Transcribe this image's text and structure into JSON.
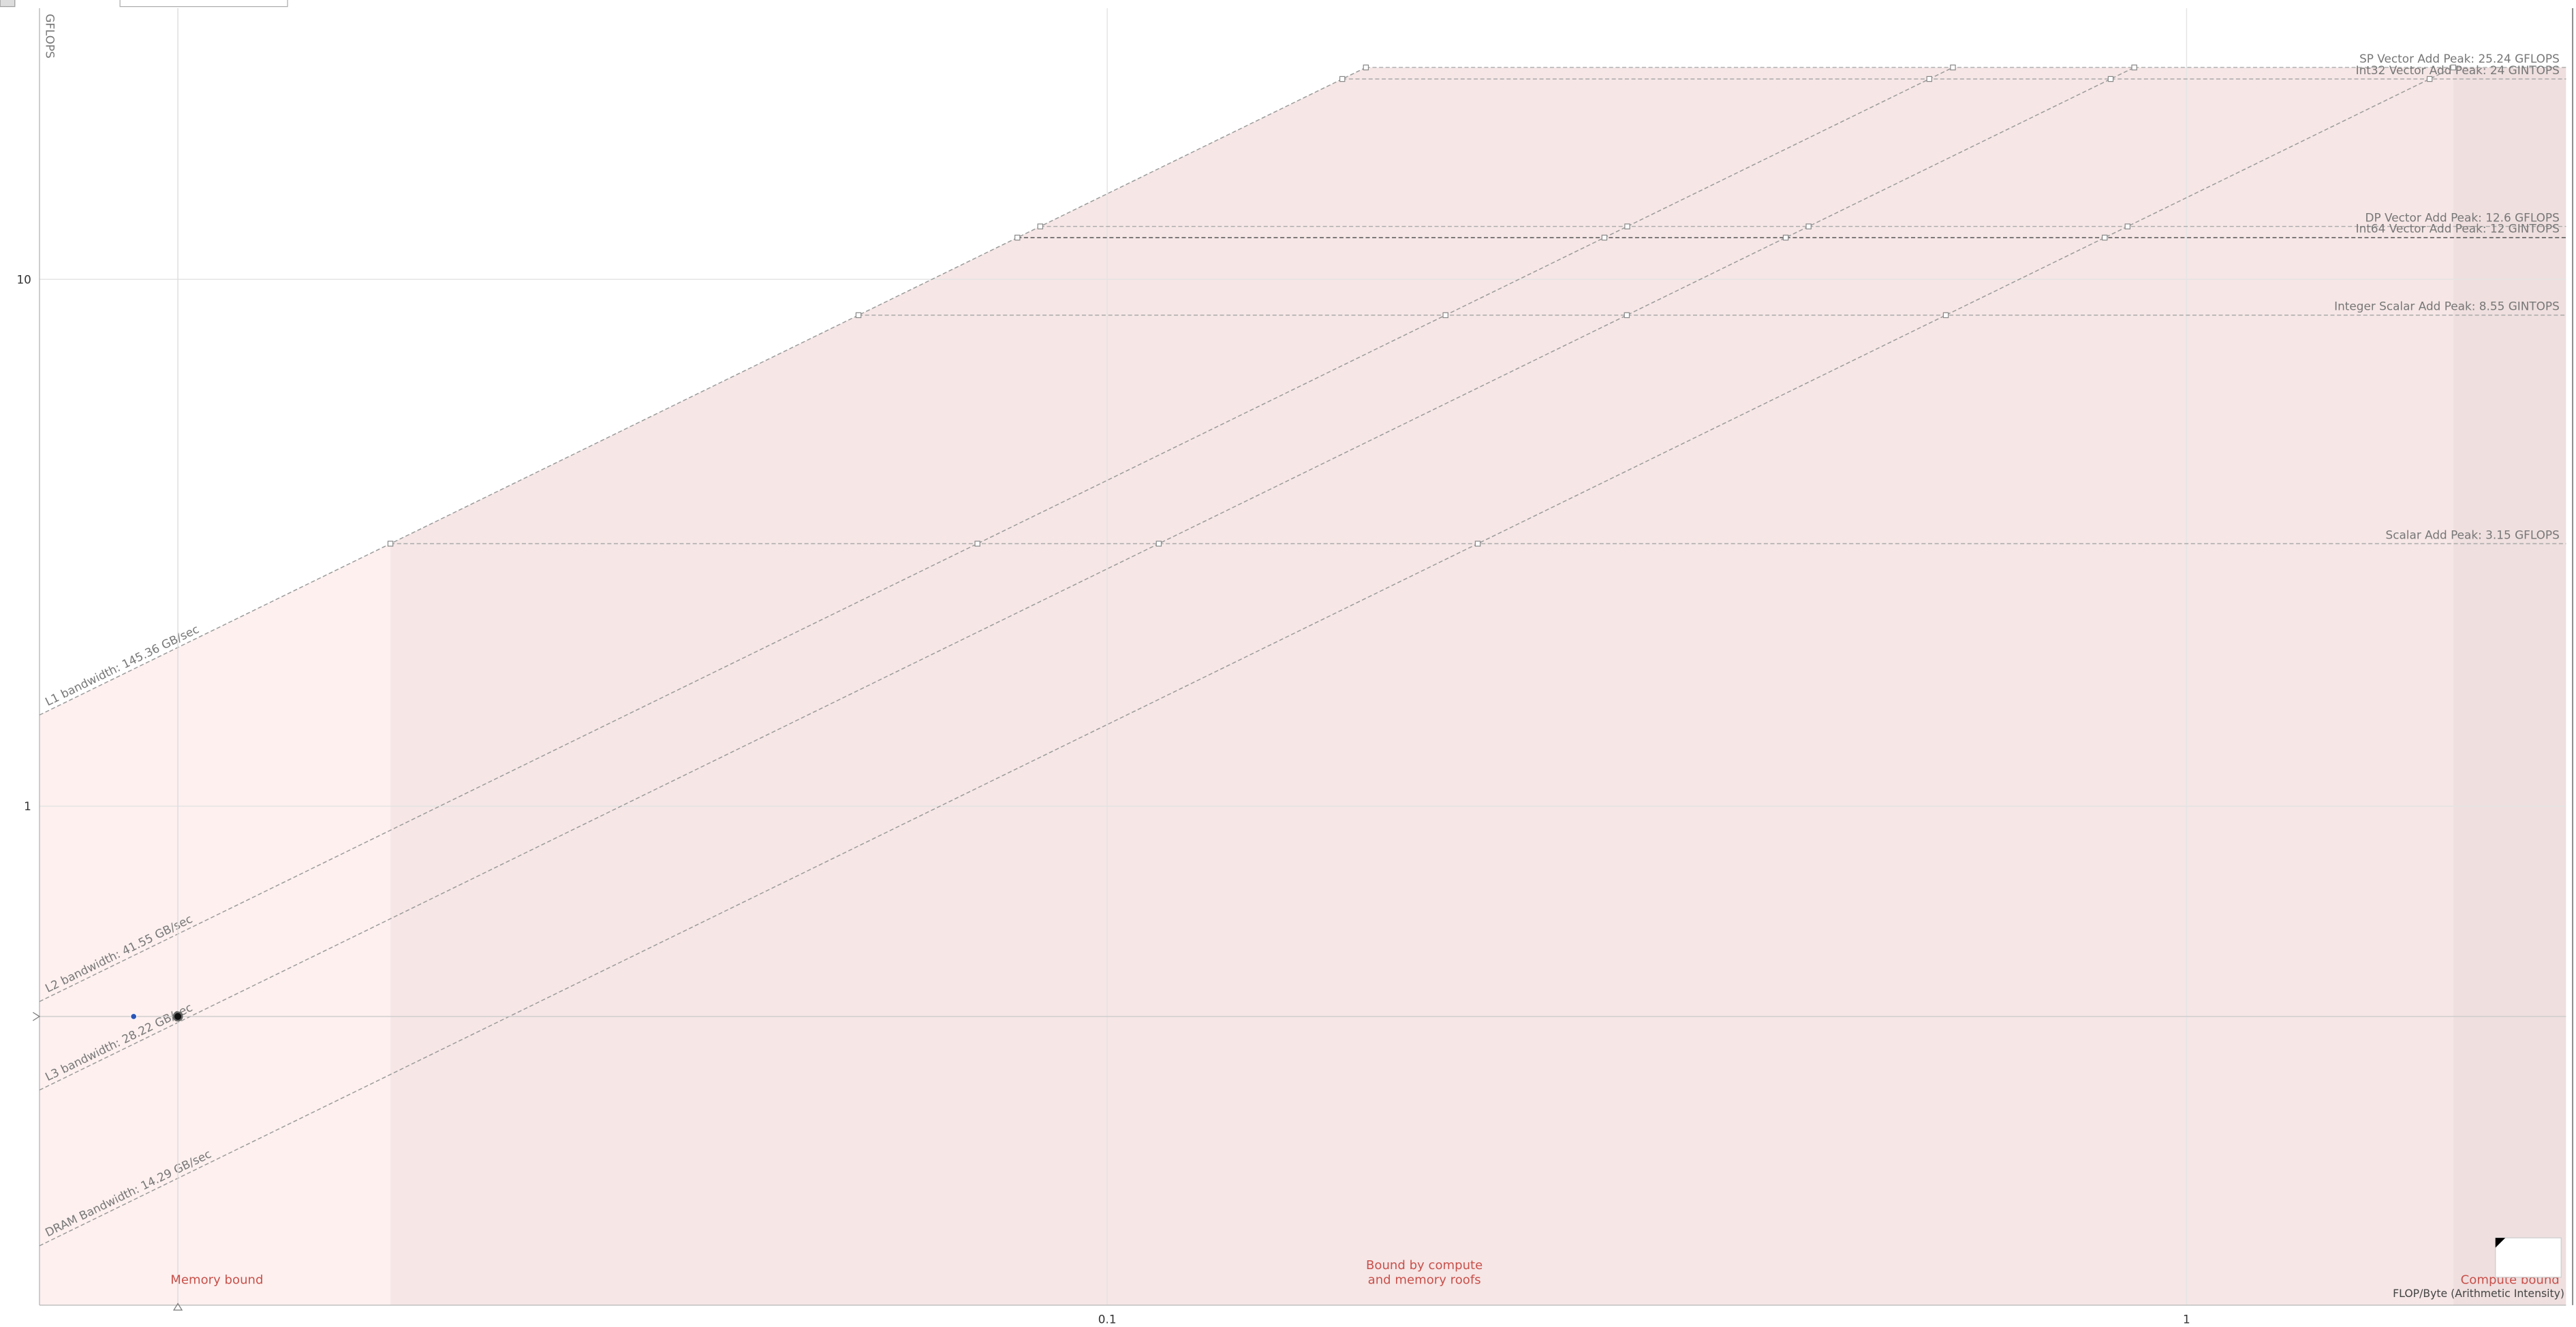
{
  "chart_data": {
    "type": "roofline",
    "xlabel": "FLOP/Byte (Arithmetic Intensity)",
    "ylabel": "GFLOPS",
    "xscale": "log",
    "yscale": "log",
    "xlim": [
      0.01025,
      2.247
    ],
    "ylim": [
      0.113,
      32.7
    ],
    "xticks": [
      0.1,
      1
    ],
    "yticks": [
      1,
      10
    ],
    "grid": true,
    "compute_roofs": [
      {
        "label": "SP Vector Add Peak: 25.24 GFLOPS",
        "value": 25.24
      },
      {
        "label": "Int32 Vector Add Peak: 24 GINTOPS",
        "value": 24
      },
      {
        "label": "DP Vector Add Peak: 12.6 GFLOPS",
        "value": 12.6
      },
      {
        "label": "Int64 Vector Add Peak: 12 GINTOPS",
        "value": 12
      },
      {
        "label": "Integer Scalar Add Peak: 8.55 GINTOPS",
        "value": 8.55
      },
      {
        "label": "Scalar Add Peak: 3.15 GFLOPS",
        "value": 3.15
      }
    ],
    "bandwidth_roofs": [
      {
        "label": "L1 bandwidth: 145.36 GB/sec",
        "value": 145.36
      },
      {
        "label": "L2 bandwidth: 41.55 GB/sec",
        "value": 41.55
      },
      {
        "label": "L3 bandwidth: 28.22 GB/sec",
        "value": 28.22
      },
      {
        "label": "DRAM Bandwidth: 14.29 GB/sec",
        "value": 14.29
      }
    ],
    "points": {
      "x": [
        0.01253,
        0.01377
      ],
      "y": [
        0.399,
        0.399
      ],
      "colors": [
        "#2a55b8",
        "#111111"
      ]
    },
    "regions": {
      "memory": "Memory bound",
      "both": [
        "Bound by compute",
        "and memory roofs"
      ],
      "compute": "Compute bound"
    }
  }
}
